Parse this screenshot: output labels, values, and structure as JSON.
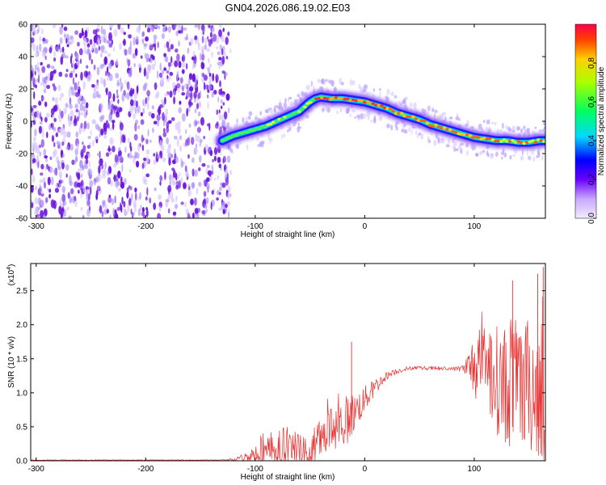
{
  "title": "GN04.2026.086.19.02.E03",
  "colors": {
    "signal": "#e83030",
    "noise": "#7a2ee0",
    "frame": "#000000"
  },
  "chart_data": [
    {
      "type": "heatmap",
      "name": "spectrogram",
      "xlabel": "Height of straight line (km)",
      "ylabel": "Frequency (Hz)",
      "xlim": [
        -305,
        165
      ],
      "ylim": [
        -60,
        60
      ],
      "xticks": [
        -300,
        -200,
        -100,
        0,
        100
      ],
      "yticks": [
        -60,
        -40,
        -20,
        0,
        20,
        40,
        60
      ],
      "noise_region_x": [
        -305,
        -128
      ],
      "ridge": {
        "x": [
          -130,
          -120,
          -110,
          -100,
          -90,
          -80,
          -70,
          -60,
          -55,
          -50,
          -45,
          -40,
          -30,
          -20,
          -10,
          0,
          10,
          20,
          30,
          40,
          50,
          60,
          70,
          80,
          90,
          100,
          110,
          120,
          130,
          140,
          150,
          160,
          165
        ],
        "y": [
          -12,
          -9,
          -7,
          -5,
          -3,
          0,
          3,
          6,
          9,
          12,
          14,
          15,
          14,
          14,
          13,
          12,
          10,
          8,
          5,
          3,
          1,
          -2,
          -4,
          -6,
          -8,
          -10,
          -11,
          -12,
          -12,
          -13,
          -13,
          -12,
          -12
        ]
      },
      "colorbar": {
        "label": "Normalized spectral amplitude",
        "range": [
          0,
          1
        ],
        "ticks": [
          0.0,
          0.2,
          0.4,
          0.6,
          0.8
        ],
        "tick_labels": [
          "0.0",
          "0.2",
          "0.4",
          "0.6",
          "0.8"
        ]
      }
    },
    {
      "type": "line",
      "name": "snr",
      "xlabel": "Height of straight line (km)",
      "ylabel": "SNR (10 * v/v)",
      "yscale_label": "(x10",
      "yscale_exp": "4",
      "xlim": [
        -305,
        165
      ],
      "ylim": [
        0,
        2.9
      ],
      "xticks": [
        -300,
        -200,
        -100,
        0,
        100
      ],
      "yticks": [
        0.0,
        0.5,
        1.0,
        1.5,
        2.0,
        2.5
      ],
      "ytick_labels": [
        "0.0",
        "0.5",
        "1.0",
        "1.5",
        "2.0",
        "2.5"
      ],
      "envelope": {
        "x": [
          -305,
          -130,
          -120,
          -110,
          -100,
          -90,
          -80,
          -70,
          -60,
          -50,
          -45,
          -40,
          -30,
          -20,
          -10,
          0,
          10,
          20,
          30,
          40,
          60,
          80,
          90,
          95,
          100,
          110,
          120,
          130,
          140,
          150,
          160,
          165
        ],
        "base": [
          0.01,
          0.01,
          0.02,
          0.05,
          0.1,
          0.15,
          0.2,
          0.2,
          0.15,
          0.1,
          0.2,
          0.35,
          0.45,
          0.55,
          0.7,
          0.9,
          1.1,
          1.25,
          1.32,
          1.36,
          1.36,
          1.35,
          1.36,
          1.35,
          1.4,
          1.4,
          1.2,
          1.1,
          1.1,
          1.1,
          1.1,
          1.1
        ],
        "spread": [
          0.005,
          0.005,
          0.02,
          0.06,
          0.15,
          0.25,
          0.3,
          0.3,
          0.25,
          0.2,
          0.35,
          0.4,
          0.4,
          0.4,
          0.3,
          0.2,
          0.12,
          0.06,
          0.04,
          0.03,
          0.03,
          0.03,
          0.05,
          0.3,
          0.5,
          0.6,
          0.8,
          0.9,
          1.0,
          1.0,
          1.1,
          1.1
        ]
      },
      "peaks": [
        {
          "x": -12,
          "y": 1.75
        },
        {
          "x": 135,
          "y": 2.65
        },
        {
          "x": 158,
          "y": 2.75
        },
        {
          "x": 163,
          "y": 2.85
        }
      ]
    }
  ]
}
